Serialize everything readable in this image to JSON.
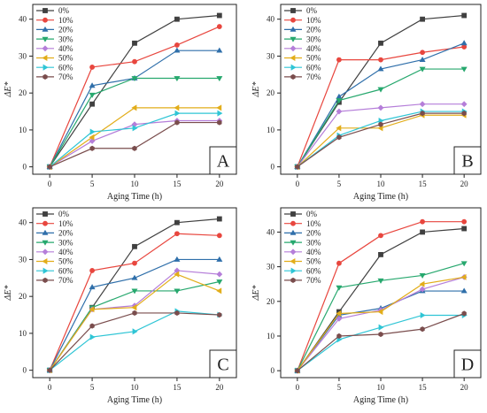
{
  "figure": {
    "series_colors": [
      "#404040",
      "#e8463e",
      "#2f6faa",
      "#27a86e",
      "#b57ed9",
      "#e2ad1a",
      "#2fc5d5",
      "#7a4d4d"
    ],
    "series_markers": [
      "square",
      "circle",
      "triangle-up",
      "triangle-down",
      "diamond",
      "triangle-left",
      "triangle-right",
      "hexagon"
    ]
  },
  "chart_data": [
    {
      "type": "line",
      "panel_label": "A",
      "xlabel": "Aging Time (h)",
      "ylabel": "ΔE*",
      "x": [
        0,
        5,
        10,
        15,
        20
      ],
      "xticks": [
        "0",
        "5",
        "10",
        "15",
        "20"
      ],
      "yticks": [
        "0",
        "10",
        "20",
        "30",
        "40"
      ],
      "xlim": [
        -2,
        22
      ],
      "ylim": [
        -2,
        44
      ],
      "series": [
        {
          "name": "0%",
          "values": [
            0,
            17,
            33.5,
            40,
            41
          ]
        },
        {
          "name": "10%",
          "values": [
            0,
            27,
            28.5,
            33,
            38
          ]
        },
        {
          "name": "20%",
          "values": [
            0,
            22,
            24,
            31.5,
            31.5
          ]
        },
        {
          "name": "30%",
          "values": [
            0,
            19.5,
            24,
            24,
            24
          ]
        },
        {
          "name": "40%",
          "values": [
            0,
            7,
            11.5,
            12.5,
            12.5
          ]
        },
        {
          "name": "50%",
          "values": [
            0,
            8,
            16,
            16,
            16
          ]
        },
        {
          "name": "60%",
          "values": [
            0,
            9.5,
            10.5,
            14.5,
            14.5
          ]
        },
        {
          "name": "70%",
          "values": [
            0,
            5,
            5,
            12,
            12
          ]
        }
      ]
    },
    {
      "type": "line",
      "panel_label": "B",
      "xlabel": "Aging Time (h)",
      "ylabel": "ΔE*",
      "x": [
        0,
        5,
        10,
        15,
        20
      ],
      "xticks": [
        "0",
        "5",
        "10",
        "15",
        "20"
      ],
      "yticks": [
        "0",
        "10",
        "20",
        "30",
        "40"
      ],
      "xlim": [
        -2,
        22
      ],
      "ylim": [
        -2,
        44
      ],
      "series": [
        {
          "name": "0%",
          "values": [
            0,
            17.5,
            33.5,
            40,
            41
          ]
        },
        {
          "name": "10%",
          "values": [
            0,
            29,
            29,
            31,
            32.5
          ]
        },
        {
          "name": "20%",
          "values": [
            0,
            19,
            26.5,
            29,
            33.5
          ]
        },
        {
          "name": "30%",
          "values": [
            0,
            18,
            21,
            26.5,
            26.5
          ]
        },
        {
          "name": "40%",
          "values": [
            0,
            15,
            16,
            17,
            17
          ]
        },
        {
          "name": "50%",
          "values": [
            0,
            10.5,
            10.5,
            14,
            14
          ]
        },
        {
          "name": "60%",
          "values": [
            0,
            8.5,
            12.5,
            15,
            15
          ]
        },
        {
          "name": "70%",
          "values": [
            0,
            8,
            11.5,
            14.5,
            14.5
          ]
        }
      ]
    },
    {
      "type": "line",
      "panel_label": "C",
      "xlabel": "Aging Time (h)",
      "ylabel": "ΔE*",
      "x": [
        0,
        5,
        10,
        15,
        20
      ],
      "xticks": [
        "0",
        "5",
        "10",
        "15",
        "20"
      ],
      "yticks": [
        "0",
        "10",
        "20",
        "30",
        "40"
      ],
      "xlim": [
        -2,
        22
      ],
      "ylim": [
        -2,
        44
      ],
      "series": [
        {
          "name": "0%",
          "values": [
            0,
            17,
            33.5,
            40,
            41
          ]
        },
        {
          "name": "10%",
          "values": [
            0,
            27,
            29,
            37,
            36.5
          ]
        },
        {
          "name": "20%",
          "values": [
            0,
            22.5,
            25,
            30,
            30
          ]
        },
        {
          "name": "30%",
          "values": [
            0,
            17,
            21.5,
            21.5,
            24
          ]
        },
        {
          "name": "40%",
          "values": [
            0,
            16.5,
            17.5,
            27,
            26
          ]
        },
        {
          "name": "50%",
          "values": [
            0,
            16.5,
            17,
            26,
            21.5
          ]
        },
        {
          "name": "60%",
          "values": [
            0,
            9,
            10.5,
            16,
            15
          ]
        },
        {
          "name": "70%",
          "values": [
            0,
            12,
            15.5,
            15.5,
            15
          ]
        }
      ]
    },
    {
      "type": "line",
      "panel_label": "D",
      "xlabel": "Aging Time (h)",
      "ylabel": "ΔE*",
      "x": [
        0,
        5,
        10,
        15,
        20
      ],
      "xticks": [
        "0",
        "5",
        "10",
        "15",
        "20"
      ],
      "yticks": [
        "0",
        "10",
        "20",
        "30",
        "40"
      ],
      "xlim": [
        -2,
        22
      ],
      "ylim": [
        -2,
        47
      ],
      "series": [
        {
          "name": "0%",
          "values": [
            0,
            17,
            33.5,
            40,
            41
          ]
        },
        {
          "name": "10%",
          "values": [
            0,
            31,
            39,
            43,
            43
          ]
        },
        {
          "name": "20%",
          "values": [
            0,
            16,
            18,
            23,
            23
          ]
        },
        {
          "name": "30%",
          "values": [
            0,
            24,
            26,
            27.5,
            31
          ]
        },
        {
          "name": "40%",
          "values": [
            0,
            15,
            17.5,
            23.5,
            27
          ]
        },
        {
          "name": "50%",
          "values": [
            0,
            16.5,
            17,
            25,
            27
          ]
        },
        {
          "name": "60%",
          "values": [
            0,
            9,
            12.5,
            16,
            16
          ]
        },
        {
          "name": "70%",
          "values": [
            0,
            10,
            10.5,
            12,
            16.5
          ]
        }
      ]
    }
  ]
}
